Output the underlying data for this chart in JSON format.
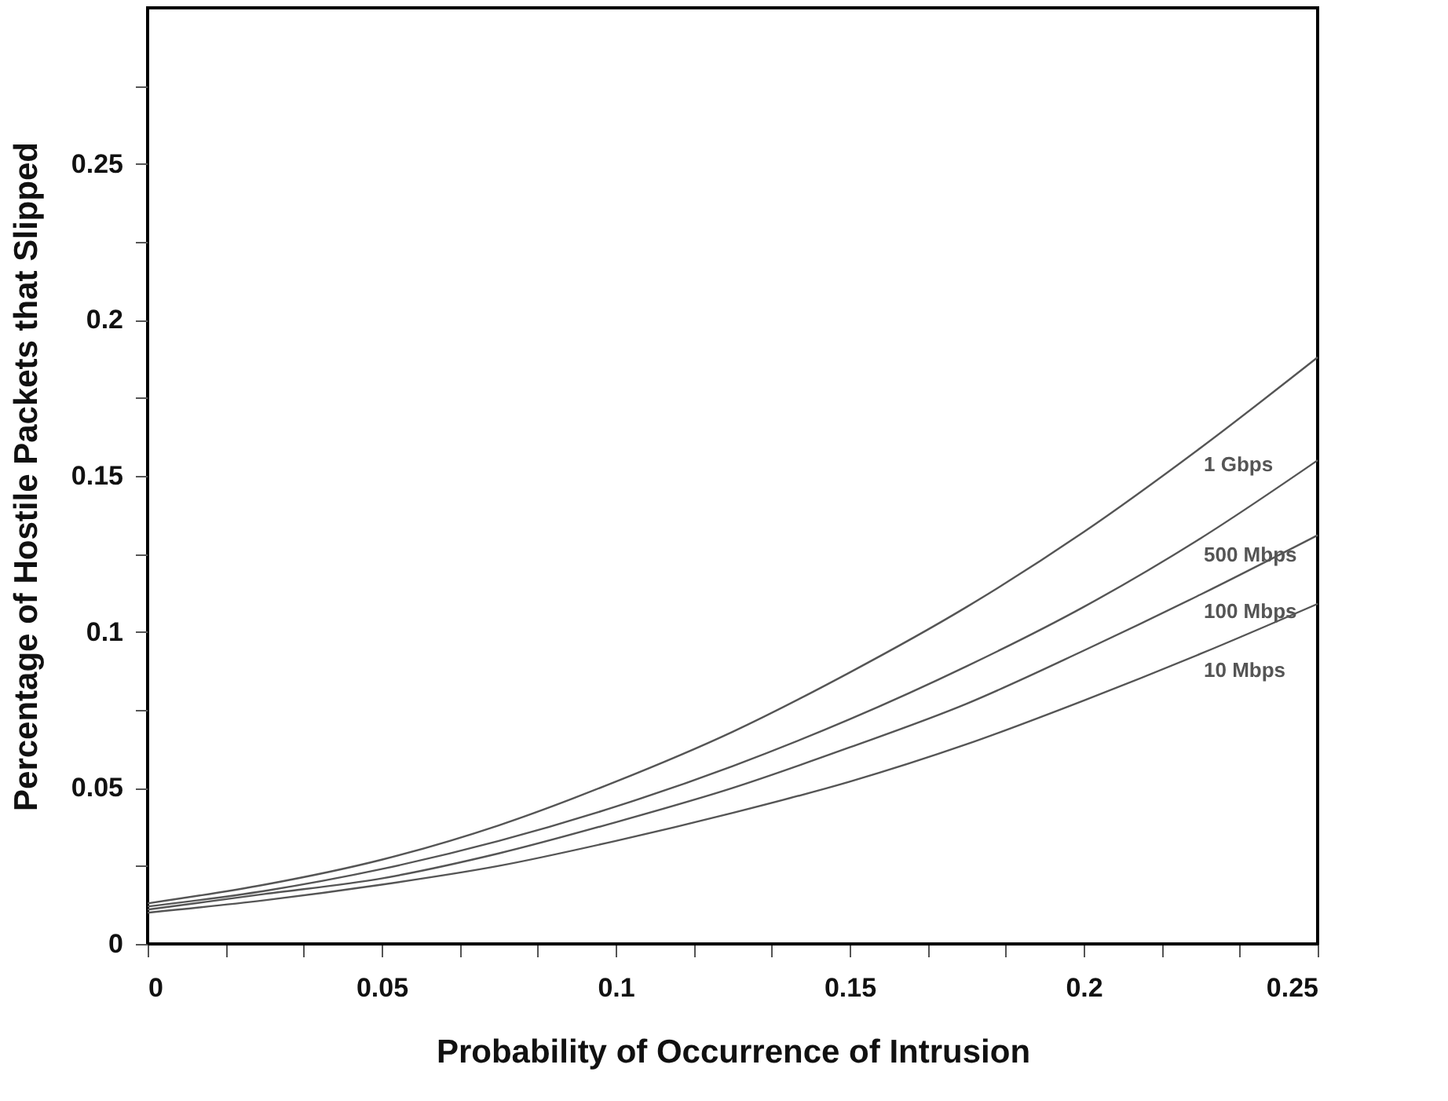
{
  "chart_data": {
    "type": "line",
    "xlabel": "Probability of Occurrence of Intrusion",
    "ylabel": "Percentage of Hostile Packets that Slipped",
    "x": [
      0,
      0.025,
      0.05,
      0.075,
      0.1,
      0.125,
      0.15,
      0.175,
      0.2,
      0.225,
      0.25
    ],
    "series": [
      {
        "name": "1 Gbps",
        "color": "#555555",
        "values": [
          0.013,
          0.019,
          0.027,
          0.038,
          0.052,
          0.068,
          0.087,
          0.108,
          0.132,
          0.159,
          0.188
        ]
      },
      {
        "name": "500 Mbps",
        "color": "#555555",
        "values": [
          0.012,
          0.017,
          0.024,
          0.033,
          0.044,
          0.057,
          0.072,
          0.089,
          0.108,
          0.13,
          0.155
        ]
      },
      {
        "name": "100 Mbps",
        "color": "#555555",
        "values": [
          0.011,
          0.016,
          0.021,
          0.029,
          0.039,
          0.05,
          0.063,
          0.077,
          0.094,
          0.112,
          0.131
        ]
      },
      {
        "name": "10 Mbps",
        "color": "#555555",
        "values": [
          0.01,
          0.014,
          0.019,
          0.025,
          0.033,
          0.042,
          0.052,
          0.064,
          0.078,
          0.093,
          0.109
        ]
      }
    ],
    "xlim": [
      0,
      0.25
    ],
    "xticks": [
      0,
      {
        "value": 0.0167,
        "label": null
      },
      {
        "value": 0.0333,
        "label": null
      },
      0.05,
      {
        "value": 0.0667,
        "label": null
      },
      {
        "value": 0.0833,
        "label": null
      },
      0.1,
      {
        "value": 0.1167,
        "label": null
      },
      {
        "value": 0.1333,
        "label": null
      },
      0.15,
      {
        "value": 0.1667,
        "label": null
      },
      {
        "value": 0.1833,
        "label": null
      },
      0.2,
      {
        "value": 0.2167,
        "label": null
      },
      {
        "value": 0.2333,
        "label": null
      },
      0.25
    ],
    "ylim": [
      0,
      0.3
    ],
    "yticks": [
      0,
      {
        "value": 0.025,
        "label": null
      },
      0.05,
      {
        "value": 0.075,
        "label": null
      },
      0.1,
      {
        "value": 0.125,
        "label": null
      },
      0.15,
      {
        "value": 0.175,
        "label": null
      },
      0.2,
      {
        "value": 0.225,
        "label": null
      },
      0.25,
      {
        "value": 0.275,
        "label": null
      }
    ],
    "grid": false,
    "legend": false,
    "marker": "none",
    "line_style": "solid"
  }
}
